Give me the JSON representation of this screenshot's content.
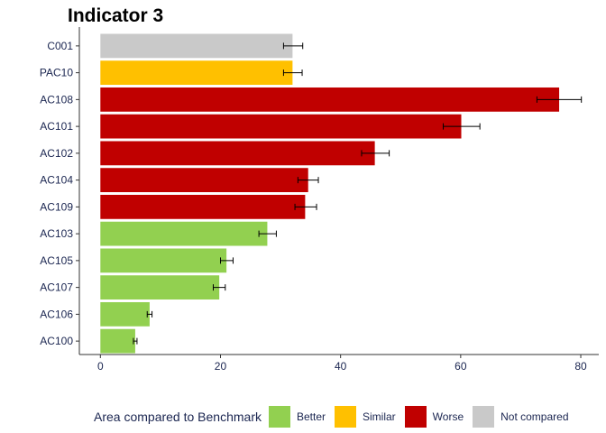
{
  "chart_data": {
    "type": "bar",
    "orientation": "horizontal",
    "title": "Indicator 3",
    "xlabel": "",
    "ylabel": "",
    "xlim": [
      -3.5,
      83
    ],
    "x_ticks": [
      "0",
      "20",
      "40",
      "60",
      "80"
    ],
    "grid": false,
    "legend_position": "bottom",
    "legend_title": "Area compared to Benchmark",
    "legend": [
      {
        "label": "Better",
        "color": "#92D050"
      },
      {
        "label": "Similar",
        "color": "#FFC000"
      },
      {
        "label": "Worse",
        "color": "#C00000"
      },
      {
        "label": "Not compared",
        "color": "#C9C9C9"
      }
    ],
    "categories": [
      "C001",
      "PAC10",
      "AC108",
      "AC101",
      "AC102",
      "AC104",
      "AC109",
      "AC103",
      "AC105",
      "AC107",
      "AC106",
      "AC100"
    ],
    "bars": [
      {
        "label": "C001",
        "value": 32.0,
        "lower": 30.5,
        "upper": 33.7,
        "group": "Not compared"
      },
      {
        "label": "PAC10",
        "value": 32.0,
        "lower": 30.5,
        "upper": 33.6,
        "group": "Similar"
      },
      {
        "label": "AC108",
        "value": 76.4,
        "lower": 72.7,
        "upper": 80.1,
        "group": "Worse"
      },
      {
        "label": "AC101",
        "value": 60.1,
        "lower": 57.1,
        "upper": 63.2,
        "group": "Worse"
      },
      {
        "label": "AC102",
        "value": 45.7,
        "lower": 43.5,
        "upper": 48.1,
        "group": "Worse"
      },
      {
        "label": "AC104",
        "value": 34.6,
        "lower": 32.9,
        "upper": 36.3,
        "group": "Worse"
      },
      {
        "label": "AC109",
        "value": 34.1,
        "lower": 32.4,
        "upper": 36.0,
        "group": "Worse"
      },
      {
        "label": "AC103",
        "value": 27.8,
        "lower": 26.4,
        "upper": 29.3,
        "group": "Better"
      },
      {
        "label": "AC105",
        "value": 21.0,
        "lower": 20.0,
        "upper": 22.1,
        "group": "Better"
      },
      {
        "label": "AC107",
        "value": 19.8,
        "lower": 18.8,
        "upper": 20.8,
        "group": "Better"
      },
      {
        "label": "AC106",
        "value": 8.2,
        "lower": 7.8,
        "upper": 8.6,
        "group": "Better"
      },
      {
        "label": "AC100",
        "value": 5.8,
        "lower": 5.5,
        "upper": 6.1,
        "group": "Better"
      }
    ]
  }
}
